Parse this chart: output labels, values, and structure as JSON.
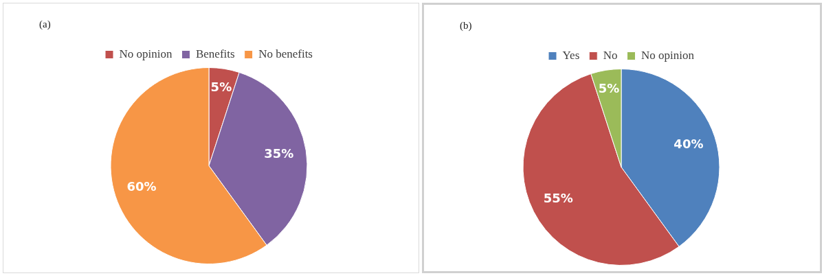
{
  "chart_data": [
    {
      "type": "pie",
      "title": "(a)",
      "categories": [
        "No opinion",
        "Benefits",
        "No benefits"
      ],
      "values": [
        5,
        35,
        60
      ],
      "colors": [
        "#c0504d",
        "#8064a2",
        "#f79646"
      ],
      "value_labels": [
        "5%",
        "35%",
        "60%"
      ],
      "legend": "top"
    },
    {
      "type": "pie",
      "title": "(b)",
      "categories": [
        "Yes",
        "No",
        "No opinion"
      ],
      "values": [
        40,
        55,
        5
      ],
      "colors": [
        "#4f81bd",
        "#c0504d",
        "#9bbb59"
      ],
      "value_labels": [
        "40%",
        "55%",
        "5%"
      ],
      "legend": "top"
    }
  ]
}
